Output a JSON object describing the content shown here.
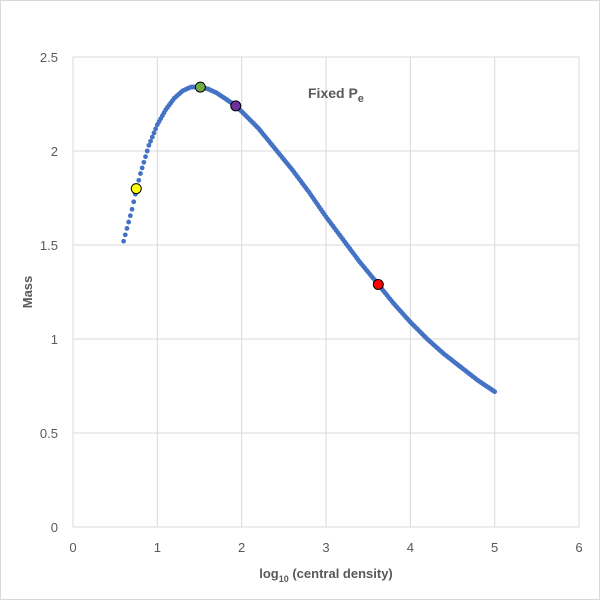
{
  "chart_data": {
    "type": "scatter",
    "xlabel": {
      "main": "log",
      "sub": "10",
      "rest": " (central density)"
    },
    "ylabel": "Mass",
    "xlim": [
      0,
      6
    ],
    "ylim": [
      0,
      2.5
    ],
    "xticks": [
      "0",
      "1",
      "2",
      "3",
      "4",
      "5",
      "6"
    ],
    "yticks": [
      "0",
      "0.5",
      "1",
      "1.5",
      "2",
      "2.5"
    ],
    "grid": true,
    "annotation": {
      "main": "Fixed P",
      "sub": "e"
    },
    "series_color": "#4472C4",
    "curve": {
      "x": [
        0.6,
        0.7,
        0.75,
        0.8,
        0.9,
        1.0,
        1.1,
        1.2,
        1.3,
        1.4,
        1.5,
        1.6,
        1.7,
        1.8,
        1.9,
        2.0,
        2.2,
        2.4,
        2.6,
        2.8,
        3.0,
        3.2,
        3.4,
        3.62,
        3.8,
        4.0,
        4.2,
        4.4,
        4.6,
        4.8,
        5.0
      ],
      "y": [
        1.52,
        1.69,
        1.79,
        1.88,
        2.03,
        2.14,
        2.22,
        2.28,
        2.32,
        2.34,
        2.34,
        2.33,
        2.31,
        2.28,
        2.25,
        2.21,
        2.12,
        2.01,
        1.9,
        1.78,
        1.65,
        1.53,
        1.41,
        1.29,
        1.19,
        1.09,
        1.0,
        0.92,
        0.85,
        0.78,
        0.72
      ]
    },
    "highlights": [
      {
        "x": 0.75,
        "y": 1.8,
        "color": "#FFFF00"
      },
      {
        "x": 1.51,
        "y": 2.34,
        "color": "#70AD47"
      },
      {
        "x": 1.93,
        "y": 2.24,
        "color": "#7030A0"
      },
      {
        "x": 3.62,
        "y": 1.29,
        "color": "#FF0000"
      }
    ]
  }
}
